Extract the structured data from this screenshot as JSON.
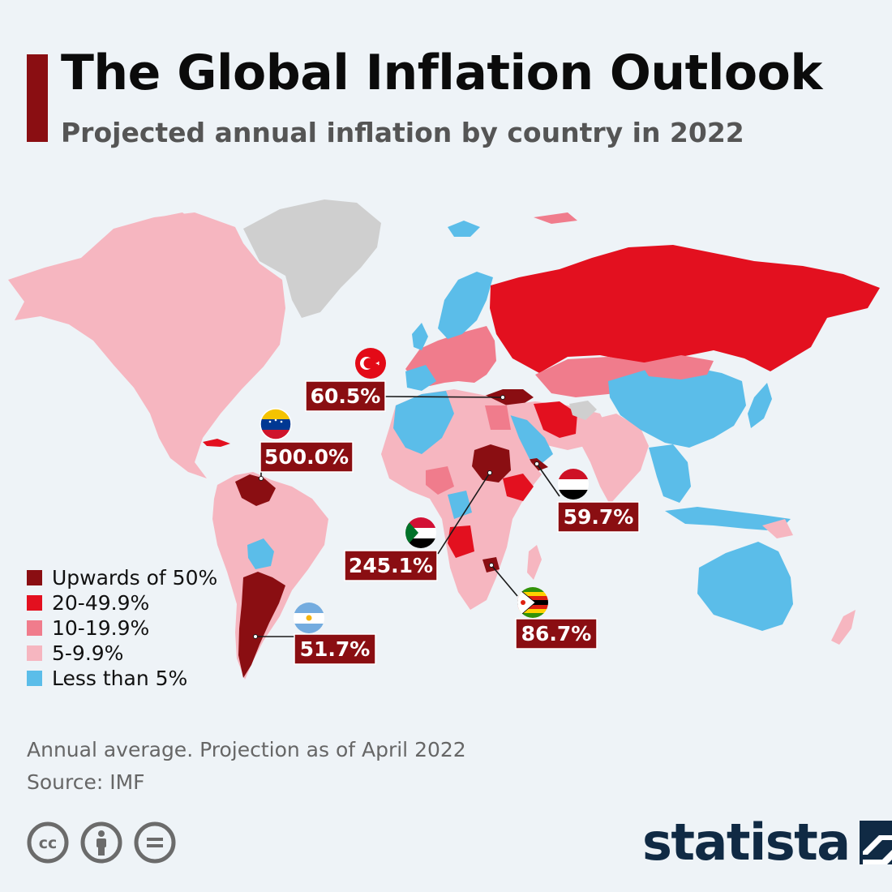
{
  "header": {
    "title": "The Global Inflation Outlook",
    "subtitle": "Projected annual inflation by country in 2022",
    "accent_color": "#8a0e12"
  },
  "legend": [
    {
      "label": "Upwards of 50%",
      "color": "#8a0e12"
    },
    {
      "label": "20-49.9%",
      "color": "#e3101f"
    },
    {
      "label": "10-19.9%",
      "color": "#f07c8c"
    },
    {
      "label": "5-9.9%",
      "color": "#f6b6c0"
    },
    {
      "label": "Less than 5%",
      "color": "#5bbde9"
    }
  ],
  "no_data_color": "#cfcfcf",
  "callouts": [
    {
      "country": "Turkey",
      "value": "60.5%",
      "flag": "turkey-flag-icon"
    },
    {
      "country": "Venezuela",
      "value": "500.0%",
      "flag": "venezuela-flag-icon"
    },
    {
      "country": "Yemen",
      "value": "59.7%",
      "flag": "yemen-flag-icon"
    },
    {
      "country": "Sudan",
      "value": "245.1%",
      "flag": "sudan-flag-icon"
    },
    {
      "country": "Zimbabwe",
      "value": "86.7%",
      "flag": "zimbabwe-flag-icon"
    },
    {
      "country": "Argentina",
      "value": "51.7%",
      "flag": "argentina-flag-icon"
    }
  ],
  "footer": {
    "note": "Annual average. Projection as of April 2022",
    "source": "Source: IMF",
    "license_icons": [
      "creative-commons-icon",
      "attribution-icon",
      "no-derivatives-icon"
    ],
    "brand": "statista"
  }
}
